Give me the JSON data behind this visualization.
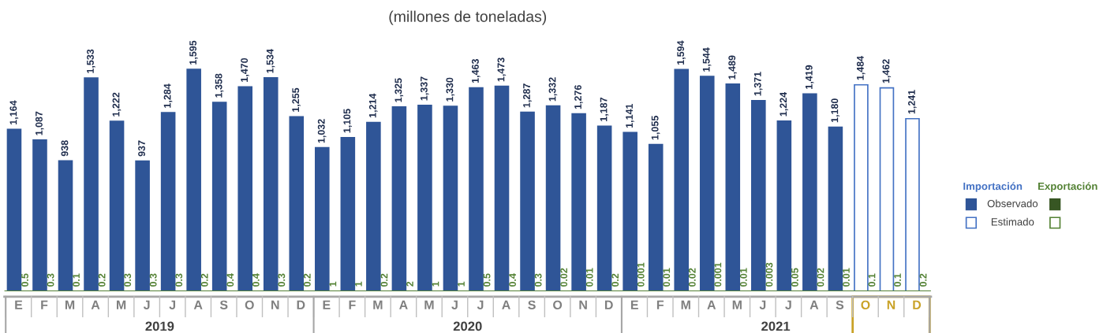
{
  "chart_data": {
    "type": "bar",
    "title": "(millones de toneladas)",
    "categories": [
      "E",
      "F",
      "M",
      "A",
      "M",
      "J",
      "J",
      "A",
      "S",
      "O",
      "N",
      "D",
      "E",
      "F",
      "M",
      "A",
      "M",
      "J",
      "J",
      "A",
      "S",
      "O",
      "N",
      "D",
      "E",
      "F",
      "M",
      "A",
      "M",
      "J",
      "J",
      "A",
      "S",
      "O",
      "N",
      "D"
    ],
    "annotations": [
      "Importación",
      "Exportación",
      "2019",
      "2020",
      "2021"
    ],
    "series": [
      {
        "name": "Observado",
        "color": "#2f5597",
        "values": [
          1164,
          1087,
          938,
          1533,
          1222,
          937,
          1284,
          1595,
          1358,
          1470,
          1534,
          1255,
          1032,
          1105,
          1214,
          1325,
          1337,
          1330,
          1463,
          1473,
          1287,
          1332,
          1276,
          1187,
          1141,
          1055,
          1594,
          1544,
          1489,
          1371,
          1224,
          1419,
          1180,
          null,
          null,
          null
        ],
        "value_labels": [
          "1,164",
          "1,087",
          "938",
          "1,533",
          "1,222",
          "937",
          "1,284",
          "1,595",
          "1,358",
          "1,470",
          "1,534",
          "1,255",
          "1,032",
          "1,105",
          "1,214",
          "1,325",
          "1,337",
          "1,330",
          "1,463",
          "1,473",
          "1,287",
          "1,332",
          "1,276",
          "1,187",
          "1,141",
          "1,055",
          "1,594",
          "1,544",
          "1,489",
          "1,371",
          "1,224",
          "1,419",
          "1,180",
          null,
          null,
          null
        ]
      },
      {
        "name": "Estimado",
        "color": "#4472c4",
        "colors": [
          "#ffffff",
          "#ffffff",
          "#ffffff",
          "#ffffff",
          "#ffffff",
          "#ffffff",
          "#ffffff",
          "#ffffff",
          "#ffffff",
          "#ffffff",
          "#ffffff",
          "#ffffff",
          "#ffffff",
          "#ffffff",
          "#ffffff",
          "#ffffff",
          "#ffffff",
          "#ffffff",
          "#ffffff",
          "#ffffff",
          "#ffffff",
          "#ffffff",
          "#ffffff",
          "#ffffff",
          "#ffffff",
          "#ffffff",
          "#ffffff",
          "#ffffff",
          "#ffffff",
          "#ffffff",
          "#ffffff",
          "#ffffff",
          "#ffffff",
          "#ffffff",
          "#ffffff",
          "#ffffff"
        ],
        "values": [
          null,
          null,
          null,
          null,
          null,
          null,
          null,
          null,
          null,
          null,
          null,
          null,
          null,
          null,
          null,
          null,
          null,
          null,
          null,
          null,
          null,
          null,
          null,
          null,
          null,
          null,
          null,
          null,
          null,
          null,
          null,
          null,
          null,
          1484,
          1462,
          1241
        ],
        "value_labels": [
          null,
          null,
          null,
          null,
          null,
          null,
          null,
          null,
          null,
          null,
          null,
          null,
          null,
          null,
          null,
          null,
          null,
          null,
          null,
          null,
          null,
          null,
          null,
          null,
          null,
          null,
          null,
          null,
          null,
          null,
          null,
          null,
          null,
          "1,484",
          "1,462",
          "1,241"
        ]
      },
      {
        "color": "#375623",
        "values": [
          0.5,
          0.3,
          0.1,
          0.2,
          0.3,
          0.3,
          0.3,
          0.2,
          0.4,
          0.4,
          0.3,
          0.2,
          1,
          1,
          0.2,
          2,
          1,
          1,
          0.5,
          0.4,
          0.3,
          0.02,
          0.01,
          0.2,
          0.001,
          0.01,
          0.02,
          0.001,
          0.01,
          0.003,
          0.05,
          0.02,
          0.01,
          null,
          null,
          null
        ],
        "value_labels": [
          "0.5",
          "0.3",
          "0.1",
          "0.2",
          "0.3",
          "0.3",
          "0.3",
          "0.2",
          "0.4",
          "0.4",
          "0.3",
          "0.2",
          "1",
          "1",
          "0.2",
          "2",
          "1",
          "1",
          "0.5",
          "0.4",
          "0.3",
          "0.02",
          "0.01",
          "0.2",
          "0.001",
          "0.01",
          "0.02",
          "0.001",
          "0.01",
          "0.003",
          "0.05",
          "0.02",
          "0.01",
          null,
          null,
          null
        ]
      },
      {
        "color": "#548235",
        "colors": [
          "#ffffff",
          "#ffffff",
          "#ffffff",
          "#ffffff",
          "#ffffff",
          "#ffffff",
          "#ffffff",
          "#ffffff",
          "#ffffff",
          "#ffffff",
          "#ffffff",
          "#ffffff",
          "#ffffff",
          "#ffffff",
          "#ffffff",
          "#ffffff",
          "#ffffff",
          "#ffffff",
          "#ffffff",
          "#ffffff",
          "#ffffff",
          "#ffffff",
          "#ffffff",
          "#ffffff",
          "#ffffff",
          "#ffffff",
          "#ffffff",
          "#ffffff",
          "#ffffff",
          "#ffffff",
          "#ffffff",
          "#ffffff",
          "#ffffff",
          "#ffffff",
          "#ffffff",
          "#ffffff"
        ],
        "values": [
          null,
          null,
          null,
          null,
          null,
          null,
          null,
          null,
          null,
          null,
          null,
          null,
          null,
          null,
          null,
          null,
          null,
          null,
          null,
          null,
          null,
          null,
          null,
          null,
          null,
          null,
          null,
          null,
          null,
          null,
          null,
          null,
          null,
          0.1,
          0.1,
          0.2
        ],
        "value_labels": [
          null,
          null,
          null,
          null,
          null,
          null,
          null,
          null,
          null,
          null,
          null,
          null,
          null,
          null,
          null,
          null,
          null,
          null,
          null,
          null,
          null,
          null,
          null,
          null,
          null,
          null,
          null,
          null,
          null,
          null,
          null,
          null,
          null,
          "0.1",
          "0.1",
          "0.2"
        ]
      }
    ],
    "legend": "right"
  }
}
